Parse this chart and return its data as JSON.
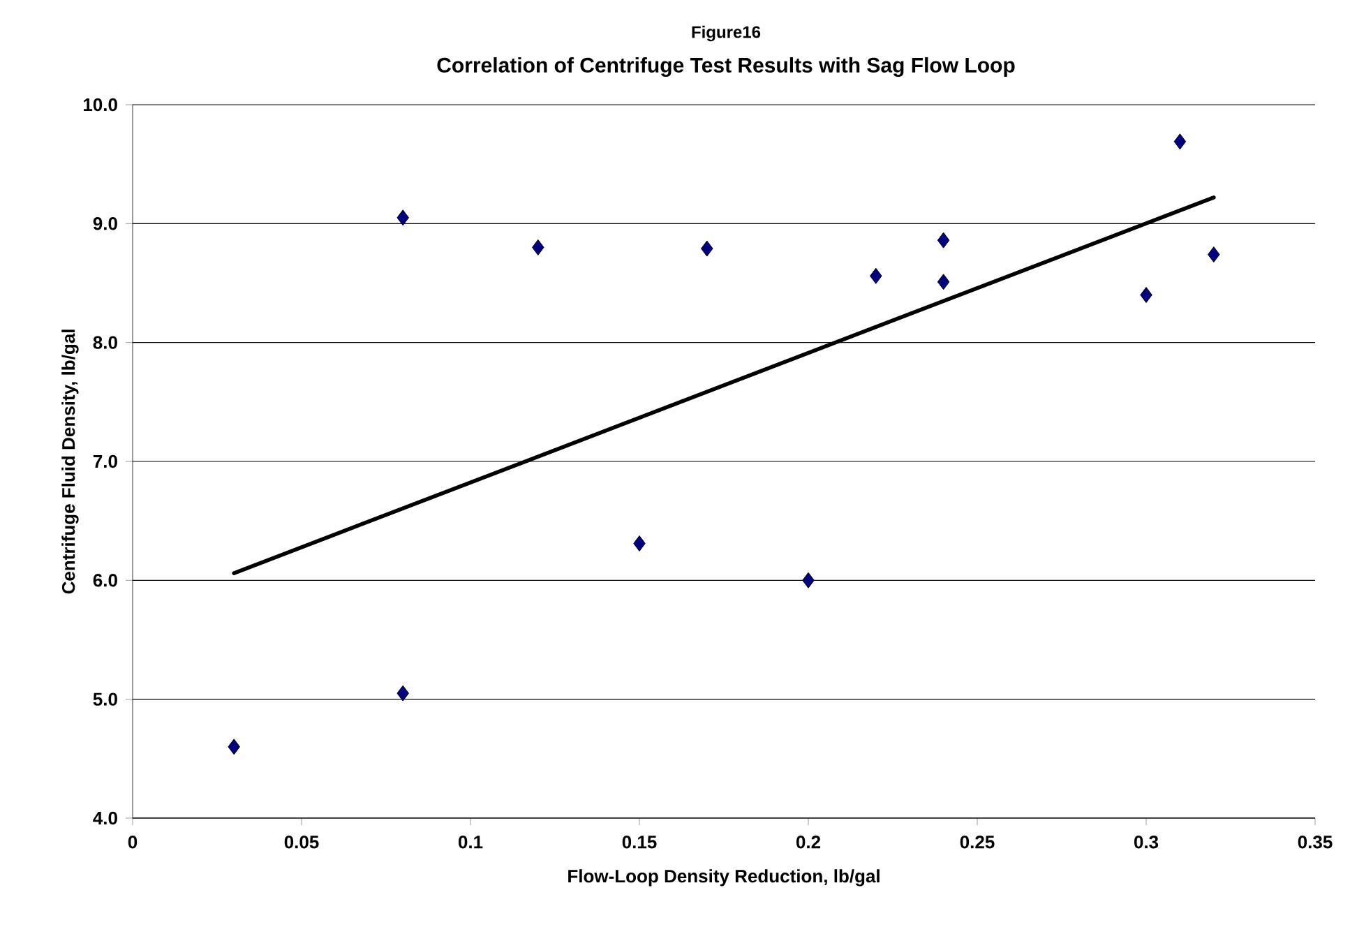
{
  "chart_data": {
    "type": "scatter",
    "title": "Figure16",
    "subtitle": "Correlation of Centrifuge Test Results with Sag Flow Loop",
    "xlabel": "Flow-Loop Density Reduction, lb/gal",
    "ylabel": "Centrifuge Fluid Density, lb/gal",
    "xlim": [
      0,
      0.35
    ],
    "xticks": [
      0,
      0.05,
      0.1,
      0.15,
      0.2,
      0.25,
      0.3,
      0.35
    ],
    "ylim": [
      4.0,
      10.0
    ],
    "yticks": [
      {
        "value": 4,
        "label": "4.0"
      },
      {
        "value": 5,
        "label": "5.0"
      },
      {
        "value": 6,
        "label": "6.0"
      },
      {
        "value": 7,
        "label": "7.0"
      },
      {
        "value": 8,
        "label": "8.0"
      },
      {
        "value": 9,
        "label": "9.0"
      },
      {
        "value": 10,
        "label": "10.0"
      }
    ],
    "grid": "y",
    "marker": "diamond",
    "series": [
      {
        "color": "#000080",
        "x": [
          0.03,
          0.08,
          0.08,
          0.12,
          0.15,
          0.17,
          0.2,
          0.22,
          0.24,
          0.24,
          0.3,
          0.31,
          0.32
        ],
        "values": [
          4.6,
          5.05,
          9.05,
          8.8,
          6.31,
          8.79,
          6.0,
          8.56,
          8.86,
          8.51,
          8.4,
          9.69,
          8.74
        ]
      },
      {
        "type": "line",
        "color": "#000000",
        "marker": "none",
        "line_style": "solid",
        "x": [
          0.03,
          0.32
        ],
        "values": [
          6.06,
          9.22
        ]
      }
    ]
  }
}
